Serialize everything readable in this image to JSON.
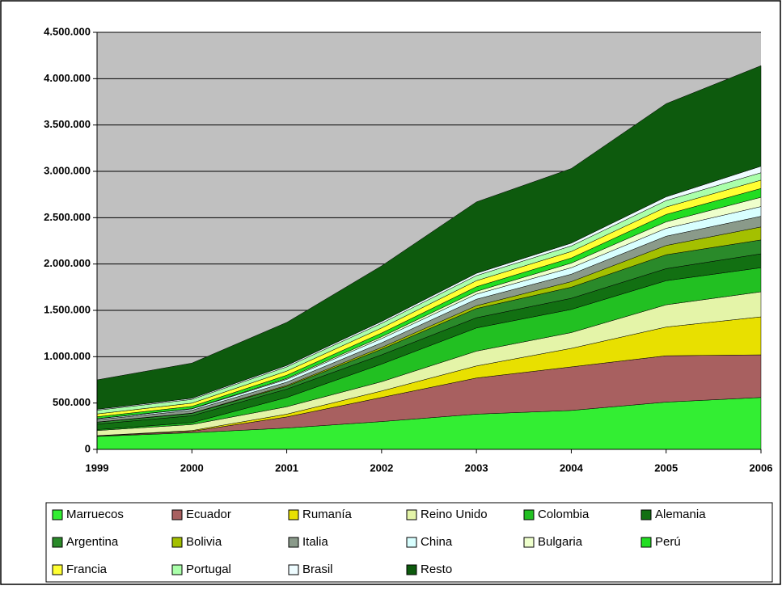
{
  "chart_data": {
    "type": "stacked-area",
    "categories": [
      "1999",
      "2000",
      "2001",
      "2002",
      "2003",
      "2004",
      "2005",
      "2006"
    ],
    "ylim": [
      0,
      4500000
    ],
    "yticks": [
      0,
      {
        "value": 500000,
        "label": "500.000"
      },
      {
        "value": 1000000,
        "label": "1.000.000"
      },
      {
        "value": 1500000,
        "label": "1.500.000"
      },
      {
        "value": 2000000,
        "label": "2.000.000"
      },
      {
        "value": 2500000,
        "label": "2.500.000"
      },
      {
        "value": 3000000,
        "label": "3.000.000"
      },
      {
        "value": 3500000,
        "label": "3.500.000"
      },
      {
        "value": 4000000,
        "label": "4.000.000"
      },
      {
        "value": 4500000,
        "label": "4.500.000"
      }
    ],
    "grid": true,
    "legend": "bottom",
    "series": [
      {
        "name": "Marruecos",
        "color": "#33ee33",
        "values": [
          140000,
          180000,
          230000,
          300000,
          380000,
          420000,
          510000,
          560000
        ]
      },
      {
        "name": "Ecuador",
        "color": "#a86060",
        "values": [
          5000,
          15000,
          120000,
          260000,
          390000,
          470000,
          500000,
          460000
        ]
      },
      {
        "name": "Rumanía",
        "color": "#e8e000",
        "values": [
          3000,
          8000,
          30000,
          70000,
          130000,
          200000,
          310000,
          410000
        ]
      },
      {
        "name": "Reino Unido",
        "color": "#e4f4a8",
        "values": [
          55000,
          65000,
          80000,
          100000,
          160000,
          170000,
          240000,
          270000
        ]
      },
      {
        "name": "Colombia",
        "color": "#22c022",
        "values": [
          10000,
          20000,
          100000,
          190000,
          250000,
          250000,
          260000,
          260000
        ]
      },
      {
        "name": "Alemania",
        "color": "#127012",
        "values": [
          60000,
          75000,
          90000,
          100000,
          110000,
          120000,
          130000,
          150000
        ]
      },
      {
        "name": "Argentina",
        "color": "#2a8a2a",
        "values": [
          20000,
          25000,
          30000,
          60000,
          100000,
          120000,
          150000,
          150000
        ]
      },
      {
        "name": "Bolivia",
        "color": "#a4c000",
        "values": [
          2000,
          3000,
          10000,
          20000,
          30000,
          60000,
          100000,
          140000
        ]
      },
      {
        "name": "Italia",
        "color": "#8a9a8a",
        "values": [
          25000,
          30000,
          35000,
          50000,
          70000,
          80000,
          100000,
          115000
        ]
      },
      {
        "name": "China",
        "color": "#d8ffff",
        "values": [
          10000,
          15000,
          30000,
          45000,
          55000,
          70000,
          85000,
          105000
        ]
      },
      {
        "name": "Bulgaria",
        "color": "#eeffcc",
        "values": [
          2000,
          3000,
          10000,
          20000,
          30000,
          50000,
          70000,
          100000
        ]
      },
      {
        "name": "Perú",
        "color": "#22dd22",
        "values": [
          20000,
          25000,
          35000,
          40000,
          50000,
          55000,
          80000,
          95000
        ]
      },
      {
        "name": "Francia",
        "color": "#ffff33",
        "values": [
          30000,
          35000,
          45000,
          55000,
          65000,
          70000,
          80000,
          90000
        ]
      },
      {
        "name": "Portugal",
        "color": "#aaffaa",
        "values": [
          40000,
          40000,
          45000,
          50000,
          55000,
          60000,
          70000,
          80000
        ]
      },
      {
        "name": "Brasil",
        "color": "#eefcff",
        "values": [
          10000,
          12000,
          15000,
          20000,
          25000,
          30000,
          40000,
          70000
        ]
      },
      {
        "name": "Resto",
        "color": "#0d5a0d",
        "values": [
          318000,
          380000,
          465000,
          600000,
          770000,
          805000,
          1005000,
          1085000
        ]
      }
    ]
  }
}
